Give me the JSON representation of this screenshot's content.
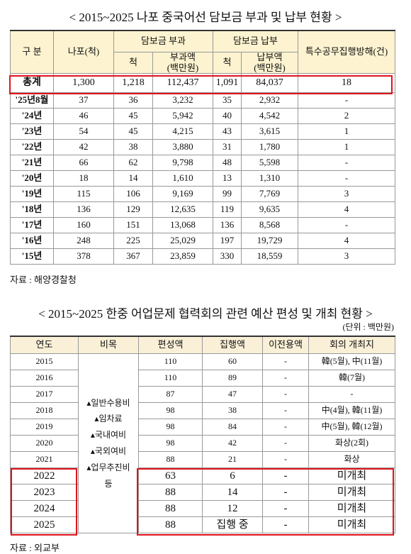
{
  "table1": {
    "title": "< 2015~2025 나포 중국어선 담보금 부과 및 납부 현황 >",
    "header": {
      "category": "구 분",
      "seized": "나포(척)",
      "imposed": "담보금 부과",
      "paid": "담보금 납부",
      "obstruction": "특수공무집행방해(건)",
      "imposed_count": "척",
      "imposed_amount": "부과액",
      "imposed_unit": "(백만원)",
      "paid_count": "척",
      "paid_amount": "납부액",
      "paid_unit": "(백만원)"
    },
    "rows": [
      [
        "총계",
        "1,300",
        "1,218",
        "112,437",
        "1,091",
        "84,037",
        "18"
      ],
      [
        "'25년8월",
        "37",
        "36",
        "3,232",
        "35",
        "2,932",
        "-"
      ],
      [
        "'24년",
        "46",
        "45",
        "5,942",
        "40",
        "4,542",
        "2"
      ],
      [
        "'23년",
        "54",
        "45",
        "4,215",
        "43",
        "3,615",
        "1"
      ],
      [
        "'22년",
        "42",
        "38",
        "3,880",
        "31",
        "1,780",
        "1"
      ],
      [
        "'21년",
        "66",
        "62",
        "9,798",
        "48",
        "5,598",
        "-"
      ],
      [
        "'20년",
        "18",
        "14",
        "1,610",
        "13",
        "1,310",
        "-"
      ],
      [
        "'19년",
        "115",
        "106",
        "9,169",
        "99",
        "7,769",
        "3"
      ],
      [
        "'18년",
        "136",
        "129",
        "12,635",
        "119",
        "9,635",
        "4"
      ],
      [
        "'17년",
        "160",
        "151",
        "13,068",
        "136",
        "8,568",
        "-"
      ],
      [
        "'16년",
        "248",
        "225",
        "25,029",
        "197",
        "19,729",
        "4"
      ],
      [
        "'15년",
        "378",
        "367",
        "23,859",
        "330",
        "18,559",
        "3"
      ]
    ],
    "source": "자료 : 해양경찰청"
  },
  "table2": {
    "title": "< 2015~2025 한중 어업문제 협력회의 관련 예산 편성 및 개최 현황 >",
    "unit": "(단위 : 백만원)",
    "header": [
      "연도",
      "비목",
      "편성액",
      "집행액",
      "이전용액",
      "회의 개최지"
    ],
    "budget_items": [
      "▴일반수용비",
      "▴임차료",
      "▴국내여비",
      "▴국외여비",
      "▴업무추진비",
      "등"
    ],
    "rows": [
      [
        "2015",
        "110",
        "60",
        "-",
        "韓(5월), 中(11월)"
      ],
      [
        "2016",
        "110",
        "89",
        "-",
        "韓(7월)"
      ],
      [
        "2017",
        "87",
        "47",
        "-",
        "-"
      ],
      [
        "2018",
        "98",
        "38",
        "-",
        "中(4월), 韓(11월)"
      ],
      [
        "2019",
        "98",
        "84",
        "-",
        "中(5월), 韓(12월)"
      ],
      [
        "2020",
        "98",
        "42",
        "-",
        "화상(2회)"
      ],
      [
        "2021",
        "88",
        "21",
        "-",
        "화상"
      ],
      [
        "2022",
        "63",
        "6",
        "-",
        "미개최"
      ],
      [
        "2023",
        "88",
        "14",
        "-",
        "미개최"
      ],
      [
        "2024",
        "88",
        "12",
        "-",
        "미개최"
      ],
      [
        "2025",
        "88",
        "집행 중",
        "-",
        "미개최"
      ]
    ],
    "source": "자료 : 외교부"
  }
}
